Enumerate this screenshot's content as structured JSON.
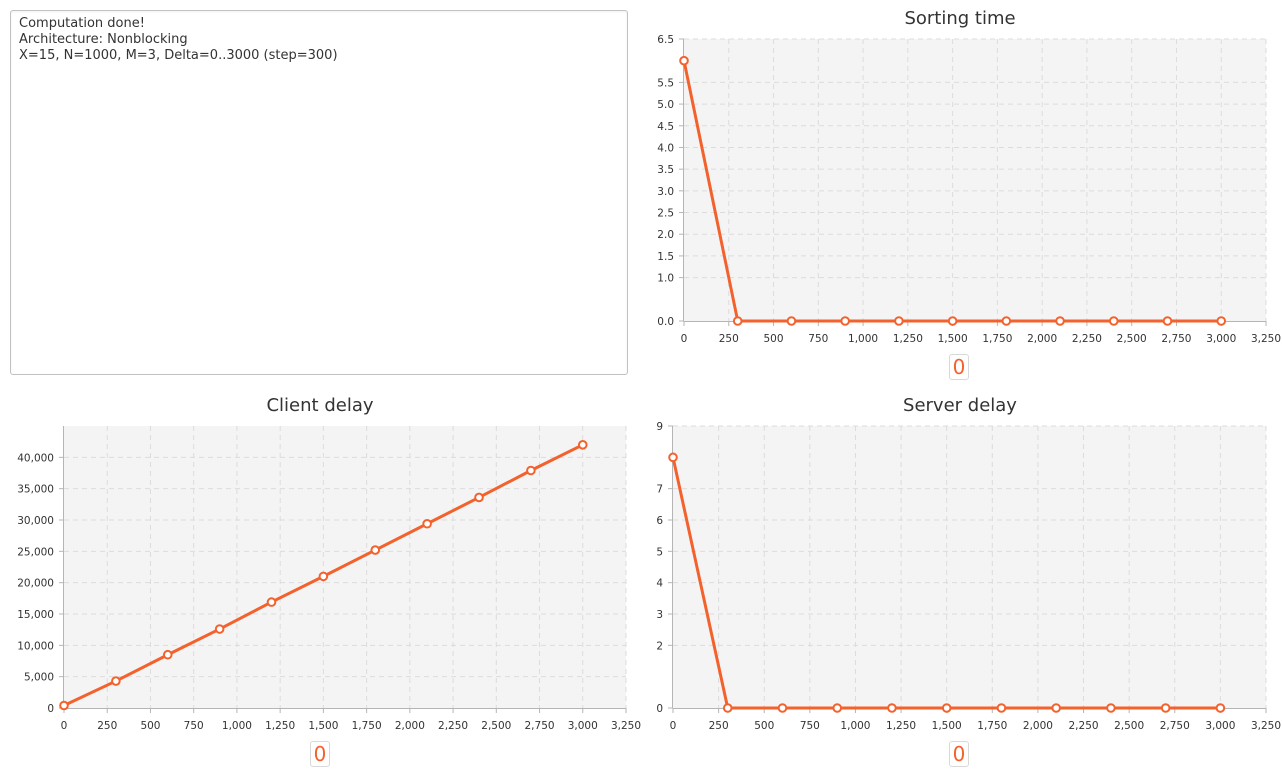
{
  "log": {
    "lines": [
      "Computation done!",
      "Architecture: Nonblocking",
      "X=15, N=1000, M=3, Delta=0..3000 (step=300)"
    ]
  },
  "colors": {
    "series": "#f3622d",
    "plot_bg": "#f4f4f4",
    "grid": "#dcdcdc"
  },
  "chart_data": [
    {
      "id": "sorting",
      "type": "line",
      "title": "Sorting time",
      "legend": [
        "0"
      ],
      "x": [
        0,
        300,
        600,
        900,
        1200,
        1500,
        1800,
        2100,
        2400,
        2700,
        3000
      ],
      "series": [
        {
          "name": "0",
          "values": [
            6.0,
            0,
            0,
            0,
            0,
            0,
            0,
            0,
            0,
            0,
            0
          ]
        }
      ],
      "xlim": [
        0,
        3250
      ],
      "ylim": [
        0,
        6.5
      ],
      "xticks": [
        0,
        250,
        500,
        750,
        1000,
        1250,
        1500,
        1750,
        2000,
        2250,
        2500,
        2750,
        3000,
        3250
      ],
      "xtick_labels": [
        "0",
        "250",
        "500",
        "750",
        "1,000",
        "1,250",
        "1,500",
        "1,750",
        "2,000",
        "2,250",
        "2,500",
        "2,750",
        "3,000",
        "3,250"
      ],
      "yticks": [
        0,
        1,
        1.5,
        2,
        2.5,
        3,
        3.5,
        4,
        4.5,
        5,
        5.5,
        6.5
      ],
      "ytick_labels": [
        "0.0",
        "1.0",
        "1.5",
        "2.0",
        "2.5",
        "3.0",
        "3.5",
        "4.0",
        "4.5",
        "5.0",
        "5.5",
        "6.5"
      ],
      "grid": true
    },
    {
      "id": "client",
      "type": "line",
      "title": "Client delay",
      "legend": [
        "0"
      ],
      "x": [
        0,
        300,
        600,
        900,
        1200,
        1500,
        1800,
        2100,
        2400,
        2700,
        3000
      ],
      "series": [
        {
          "name": "0",
          "values": [
            400,
            4300,
            8500,
            12600,
            16900,
            21000,
            25200,
            29400,
            33600,
            37900,
            42000
          ]
        }
      ],
      "xlim": [
        0,
        3250
      ],
      "ylim": [
        0,
        45000
      ],
      "xticks": [
        0,
        250,
        500,
        750,
        1000,
        1250,
        1500,
        1750,
        2000,
        2250,
        2500,
        2750,
        3000,
        3250
      ],
      "xtick_labels": [
        "0",
        "250",
        "500",
        "750",
        "1,000",
        "1,250",
        "1,500",
        "1,750",
        "2,000",
        "2,250",
        "2,500",
        "2,750",
        "3,000",
        "3,250"
      ],
      "yticks": [
        0,
        5000,
        10000,
        15000,
        20000,
        25000,
        30000,
        35000,
        40000
      ],
      "ytick_labels": [
        "0",
        "5,000",
        "10,000",
        "15,000",
        "20,000",
        "25,000",
        "30,000",
        "35,000",
        "40,000"
      ],
      "grid": true
    },
    {
      "id": "server",
      "type": "line",
      "title": "Server delay",
      "legend": [
        "0"
      ],
      "x": [
        0,
        300,
        600,
        900,
        1200,
        1500,
        1800,
        2100,
        2400,
        2700,
        3000
      ],
      "series": [
        {
          "name": "0",
          "values": [
            8.0,
            0,
            0,
            0,
            0,
            0,
            0,
            0,
            0,
            0,
            0
          ]
        }
      ],
      "xlim": [
        0,
        3250
      ],
      "ylim": [
        0,
        9
      ],
      "xticks": [
        0,
        250,
        500,
        750,
        1000,
        1250,
        1500,
        1750,
        2000,
        2250,
        2500,
        2750,
        3000,
        3250
      ],
      "xtick_labels": [
        "0",
        "250",
        "500",
        "750",
        "1,000",
        "1,250",
        "1,500",
        "1,750",
        "2,000",
        "2,250",
        "2,500",
        "2,750",
        "3,000",
        "3,250"
      ],
      "yticks": [
        0,
        2,
        3,
        4,
        5,
        6,
        7,
        9
      ],
      "ytick_labels": [
        "0",
        "2",
        "3",
        "4",
        "5",
        "6",
        "7",
        "9"
      ],
      "grid": true
    }
  ]
}
